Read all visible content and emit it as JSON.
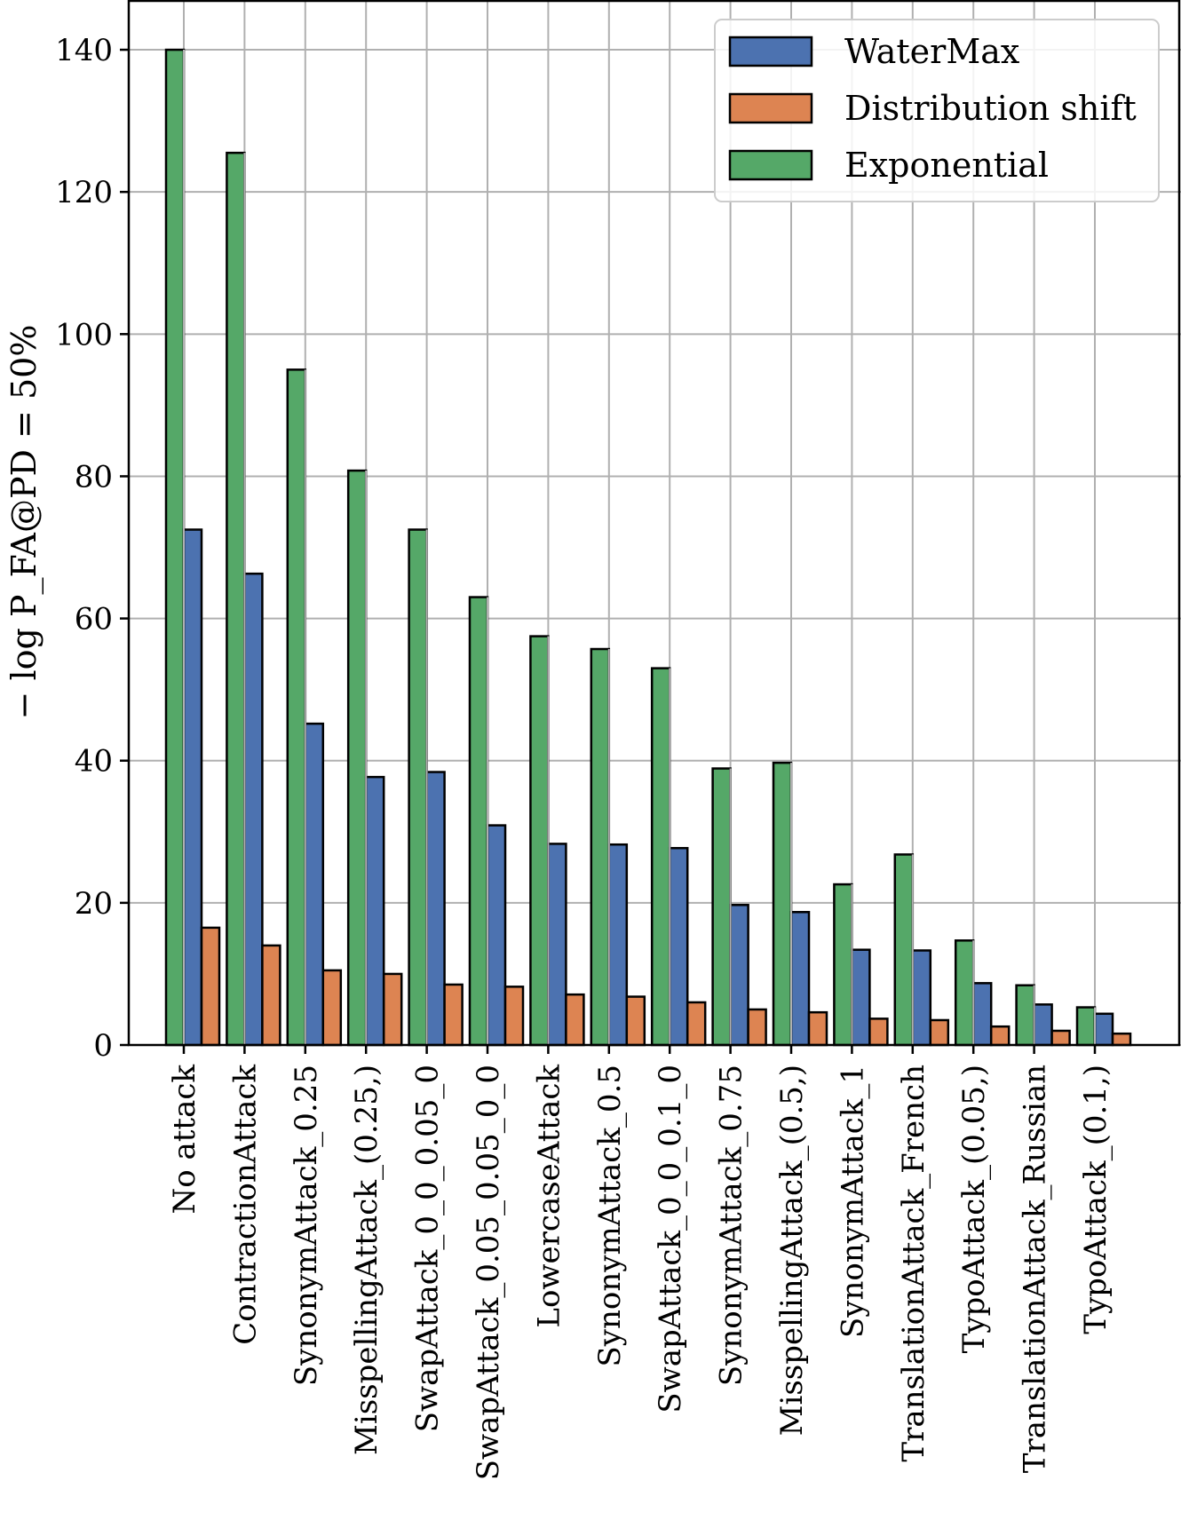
{
  "chart_data": {
    "type": "bar",
    "ylabel": "− log P_FA@PD = 50%",
    "xlabel": "",
    "ylim": [
      0,
      140
    ],
    "yticks": [
      0,
      20,
      40,
      60,
      80,
      100,
      120,
      140
    ],
    "grid": true,
    "legend_position": "top-right",
    "categories": [
      "No attack",
      "ContractionAttack",
      "SynonymAttack_0.25",
      "MisspellingAttack_(0.25,)",
      "SwapAttack_0_0_0.05_0",
      "SwapAttack_0.05_0.05_0_0",
      "LowercaseAttack",
      "SynonymAttack_0.5",
      "SwapAttack_0_0_0.1_0",
      "SynonymAttack_0.75",
      "MisspellingAttack_(0.5,)",
      "SynonymAttack_1",
      "TranslationAttack_French",
      "TypoAttack_(0.05,)",
      "TranslationAttack_Russian",
      "TypoAttack_(0.1,)"
    ],
    "series": [
      {
        "name": "Exponential",
        "color": "#55a868",
        "values": [
          140,
          125.5,
          95,
          80.8,
          72.5,
          63,
          57.5,
          55.7,
          53,
          38.9,
          39.7,
          22.6,
          26.8,
          14.7,
          8.4,
          5.3
        ]
      },
      {
        "name": "WaterMax",
        "color": "#4c72b0",
        "values": [
          72.5,
          66.3,
          45.2,
          37.7,
          38.4,
          30.9,
          28.3,
          28.2,
          27.7,
          19.7,
          18.7,
          13.4,
          13.3,
          8.7,
          5.7,
          4.4
        ]
      },
      {
        "name": "Distribution shift",
        "color": "#dd8452",
        "values": [
          16.5,
          14,
          10.5,
          10,
          8.5,
          8.2,
          7.1,
          6.8,
          6,
          5,
          4.6,
          3.7,
          3.5,
          2.6,
          2,
          1.6
        ]
      }
    ],
    "legend": [
      "WaterMax",
      "Distribution shift",
      "Exponential"
    ]
  }
}
